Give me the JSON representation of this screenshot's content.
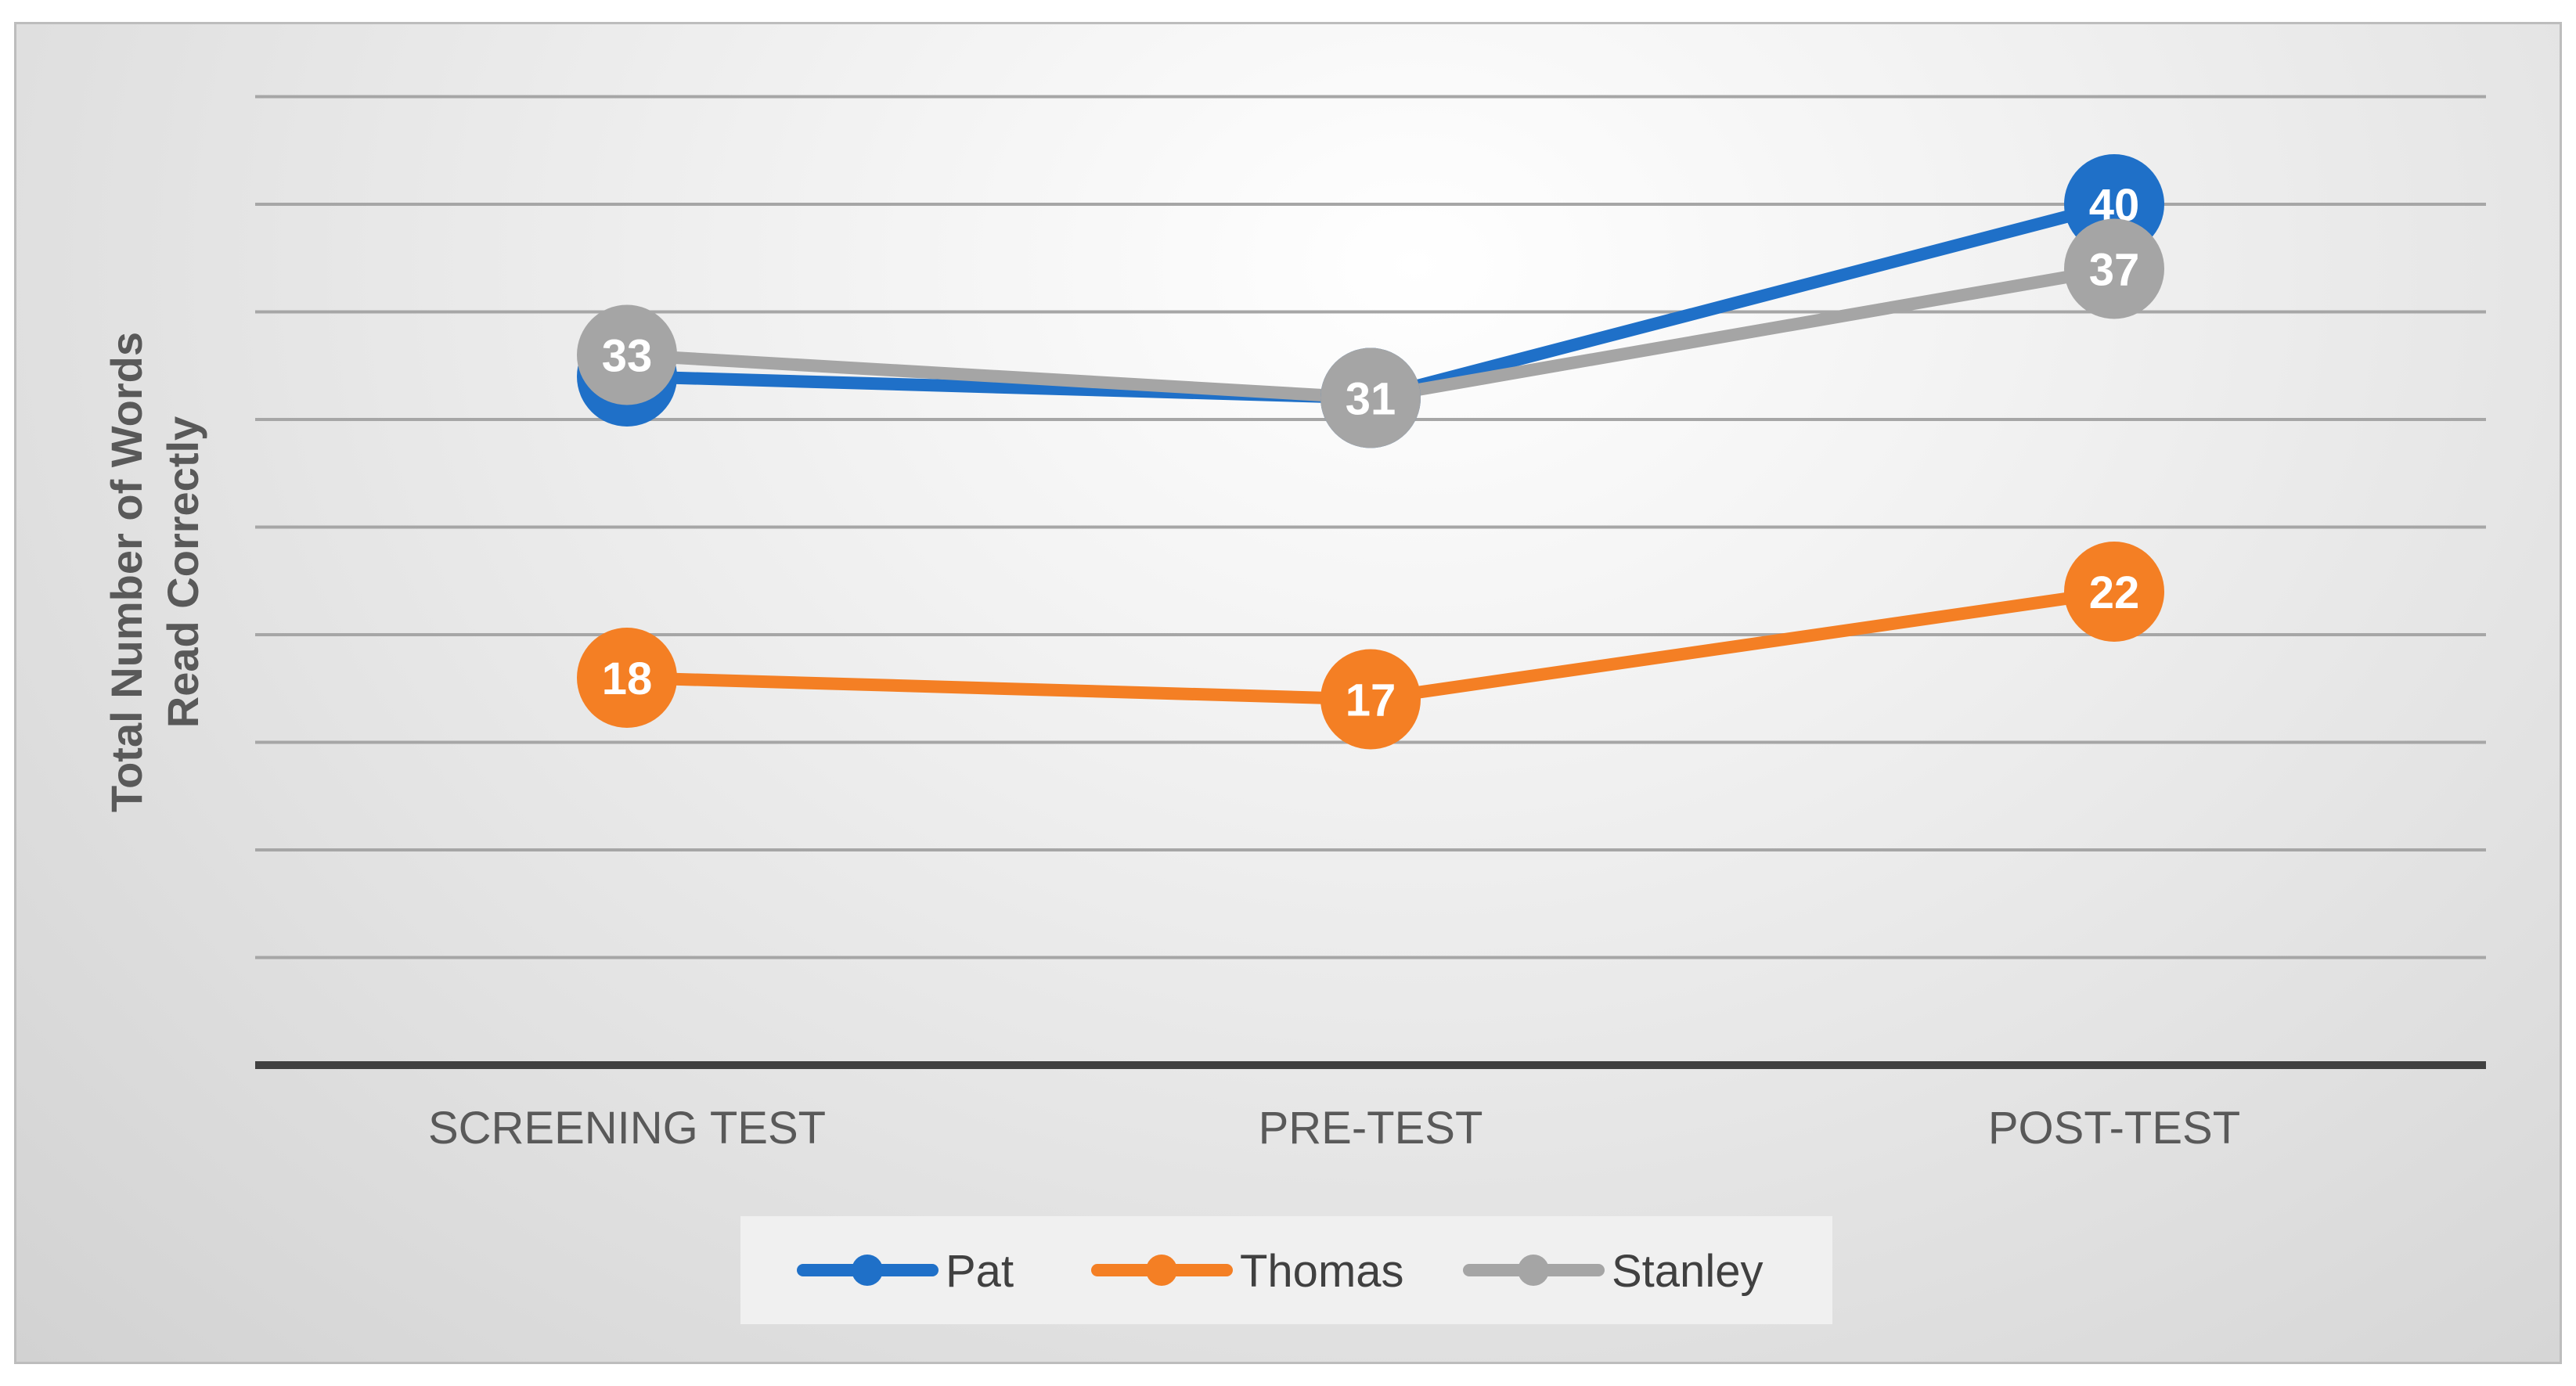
{
  "chart_data": {
    "type": "line",
    "title": "",
    "xlabel": "",
    "ylabel": "Total Number of Words Read Correctly",
    "ylabel_lines": [
      "Total Number of Words",
      "Read Correctly"
    ],
    "categories": [
      "SCREENING TEST",
      "PRE-TEST",
      "POST-TEST"
    ],
    "series": [
      {
        "name": "Pat",
        "values": [
          32,
          31,
          40
        ],
        "color": "#1f70c8"
      },
      {
        "name": "Thomas",
        "values": [
          18,
          17,
          22
        ],
        "color": "#f47f24"
      },
      {
        "name": "Stanley",
        "values": [
          33,
          31,
          37
        ],
        "color": "#a5a5a5"
      }
    ],
    "ylim": [
      0,
      45
    ],
    "grid": true,
    "y_tick_labels_shown": false,
    "data_labels": true,
    "legend_position": "bottom",
    "colors": {
      "axis": "#404040",
      "gridline": "#a6a6a6",
      "text": "#595959",
      "legend_bg": "#f0f0f0"
    }
  }
}
